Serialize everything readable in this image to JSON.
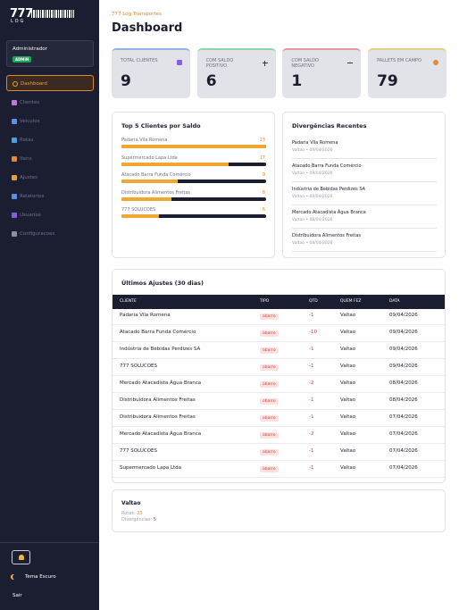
{
  "sidebar": {
    "logo": "777",
    "logo_sub": "LOG",
    "user": "Administrador",
    "role": "ADMIN",
    "nav": [
      "Dashboard",
      "Clientes",
      "Veiculos",
      "Rotas",
      "Itens",
      "Ajustes",
      "Relatorios",
      "Usuarios",
      "Configuracoes"
    ],
    "theme": "Tema Escuro",
    "logout": "Sair"
  },
  "header": {
    "company": "777 Log Transportes",
    "title": "Dashboard"
  },
  "stats": [
    {
      "label": "TOTAL CLIENTES",
      "value": 9
    },
    {
      "label": "COM SALDO POSITIVO",
      "value": 6
    },
    {
      "label": "COM SALDO NEGATIVO",
      "value": 1
    },
    {
      "label": "PALLETS EM CAMPO",
      "value": 79
    }
  ],
  "top_clients": {
    "title": "Top 5 Clientes por Saldo",
    "items": [
      {
        "name": "Padaria Vila Romena",
        "value": 23
      },
      {
        "name": "Supermercado Lapa Ltda",
        "value": 17
      },
      {
        "name": "Atacado Barra Funda Comércio",
        "value": 9
      },
      {
        "name": "Distribuidora Alimentos Freitas",
        "value": 8
      },
      {
        "name": "777 SOLUCOES",
        "value": 6
      }
    ]
  },
  "divergences": {
    "title": "Divergências Recentes",
    "items": [
      {
        "name": "Padaria Vila Romena",
        "meta": "Valtao • 09/04/2026"
      },
      {
        "name": "Atacado Barra Funda Comércio",
        "meta": "Valtao • 09/04/2026"
      },
      {
        "name": "Indústria de Bebidas Perdizes SA",
        "meta": "Valtao • 09/04/2026"
      },
      {
        "name": "Mercado Atacadista Água Branca",
        "meta": "Valtao • 08/04/2026"
      },
      {
        "name": "Distribuidora Alimentos Freitas",
        "meta": "Valtao • 08/04/2026"
      }
    ]
  },
  "adjustments": {
    "title": "Últimos Ajustes (30 dias)",
    "columns": [
      "CLIENTE",
      "TIPO",
      "QTD",
      "QUEM FEZ",
      "DATA"
    ],
    "rows": [
      [
        "Padaria Vila Romena",
        "obarro",
        "-1",
        "Valtao",
        "09/04/2026"
      ],
      [
        "Atacado Barra Funda Comércio",
        "obarro",
        "-10",
        "Valtao",
        "09/04/2026"
      ],
      [
        "Indústria de Bebidas Perdizes SA",
        "obarro",
        "-1",
        "Valtao",
        "09/04/2026"
      ],
      [
        "777 SOLUCOES",
        "obarro",
        "-1",
        "Valtao",
        "09/04/2026"
      ],
      [
        "Mercado Atacadista Água Branca",
        "obarro",
        "-2",
        "Valtao",
        "08/04/2026"
      ],
      [
        "Distribuidora Alimentos Freitas",
        "obarro",
        "-1",
        "Valtao",
        "08/04/2026"
      ],
      [
        "Distribuidora Alimentos Freitas",
        "obarro",
        "-1",
        "Valtao",
        "07/04/2026"
      ],
      [
        "Mercado Atacadista Água Branca",
        "obarro",
        "-2",
        "Valtao",
        "07/04/2026"
      ],
      [
        "777 SOLUCOES",
        "obarro",
        "-1",
        "Valtao",
        "07/04/2026"
      ],
      [
        "Supermercado Lapa Ltda",
        "obarro",
        "-1",
        "Valtao",
        "07/04/2026"
      ]
    ]
  },
  "user_card": {
    "name": "Valtao",
    "routes_label": "Rotas:",
    "routes": 23,
    "divergences_label": "Divergências:",
    "divergences": 5
  }
}
